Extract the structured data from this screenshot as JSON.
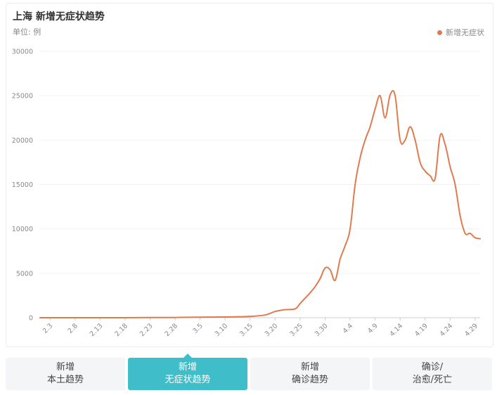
{
  "header": {
    "title": "上海 新增无症状趋势",
    "unit": "单位: 例"
  },
  "legend": {
    "label": "新增无症状",
    "color": "#e07a4f"
  },
  "tabs": [
    {
      "line1": "新增",
      "line2": "本土趋势",
      "active": false
    },
    {
      "line1": "新增",
      "line2": "无症状趋势",
      "active": true
    },
    {
      "line1": "新增",
      "line2": "确诊趋势",
      "active": false
    },
    {
      "line1": "确诊/",
      "line2": "治愈/死亡",
      "active": false
    }
  ],
  "chart_data": {
    "type": "line",
    "title": "上海 新增无症状趋势",
    "ylabel": "单位: 例",
    "ylim": [
      0,
      30000
    ],
    "yticks": [
      0,
      5000,
      10000,
      15000,
      20000,
      25000,
      30000
    ],
    "xticks": [
      "2.3",
      "2.8",
      "2.13",
      "2.18",
      "2.23",
      "2.28",
      "3.5",
      "3.10",
      "3.15",
      "3.20",
      "3.25",
      "3.30",
      "4.4",
      "4.9",
      "4.14",
      "4.19",
      "4.24",
      "4.29"
    ],
    "grid": true,
    "legend_position": "top-right",
    "series": [
      {
        "name": "新增无症状",
        "color": "#e07a4f",
        "x": [
          "2.1",
          "2.3",
          "2.8",
          "2.13",
          "2.18",
          "2.23",
          "2.28",
          "3.1",
          "3.5",
          "3.10",
          "3.12",
          "3.15",
          "3.18",
          "3.20",
          "3.22",
          "3.24",
          "3.25",
          "3.26",
          "3.27",
          "3.28",
          "3.29",
          "3.30",
          "3.31",
          "4.1",
          "4.2",
          "4.3",
          "4.4",
          "4.5",
          "4.6",
          "4.7",
          "4.8",
          "4.9",
          "4.10",
          "4.11",
          "4.12",
          "4.13",
          "4.14",
          "4.15",
          "4.16",
          "4.17",
          "4.18",
          "4.19",
          "4.20",
          "4.21",
          "4.22",
          "4.23",
          "4.24",
          "4.25",
          "4.26",
          "4.27",
          "4.28",
          "4.29",
          "4.30"
        ],
        "values": [
          0,
          0,
          0,
          0,
          0,
          20,
          20,
          40,
          60,
          80,
          100,
          150,
          300,
          700,
          900,
          1000,
          1600,
          2200,
          2800,
          3500,
          4400,
          5600,
          5400,
          4200,
          6600,
          8100,
          10000,
          15000,
          18000,
          20000,
          21500,
          23500,
          25000,
          22500,
          25100,
          25000,
          20000,
          20000,
          21500,
          20000,
          17500,
          16500,
          16000,
          15700,
          20500,
          19500,
          17000,
          15000,
          11500,
          9500,
          9500,
          9000,
          8900
        ]
      }
    ]
  }
}
